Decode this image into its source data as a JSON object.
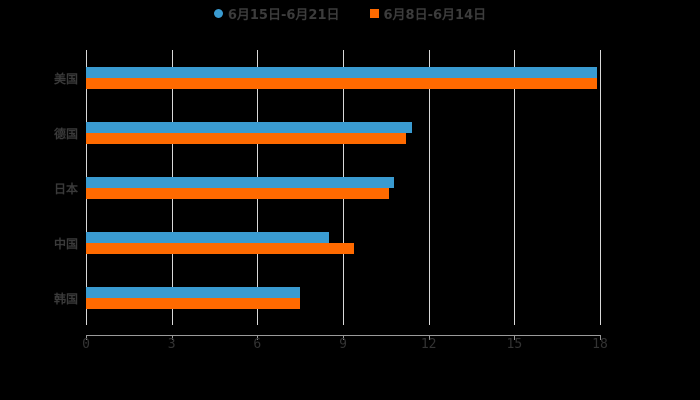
{
  "legend": [
    {
      "label": "6月15日-6月21日",
      "color": "#3a9bd1",
      "marker": "circle"
    },
    {
      "label": "6月8日-6月14日",
      "color": "#ff6a00",
      "marker": "square"
    }
  ],
  "chart_data": {
    "type": "bar",
    "orientation": "horizontal",
    "title": "",
    "xlabel": "",
    "ylabel": "",
    "categories": [
      "美国",
      "德国",
      "日本",
      "中国",
      "韩国"
    ],
    "series": [
      {
        "name": "6月15日-6月21日",
        "color": "#3a9bd1",
        "values": [
          17.9,
          11.4,
          10.8,
          8.5,
          7.5
        ]
      },
      {
        "name": "6月8日-6月14日",
        "color": "#ff6a00",
        "values": [
          17.9,
          11.2,
          10.6,
          9.4,
          7.5
        ]
      }
    ],
    "xlim": [
      0,
      18
    ],
    "xticks": [
      "0",
      "3",
      "6",
      "9",
      "12",
      "15",
      "18"
    ],
    "grid": "vertical",
    "legend_position": "top"
  }
}
